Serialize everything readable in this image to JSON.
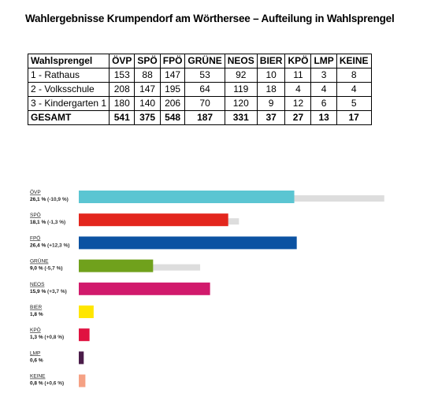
{
  "title": "Wahlergebnisse Krumpendorf am Wörthersee – Aufteilung in Wahlsprengel",
  "table": {
    "headers": [
      "Wahlsprengel",
      "ÖVP",
      "SPÖ",
      "FPÖ",
      "GRÜNE",
      "NEOS",
      "BIER",
      "KPÖ",
      "LMP",
      "KEINE"
    ],
    "rows": [
      [
        "1 - Rathaus",
        "153",
        "88",
        "147",
        "53",
        "92",
        "10",
        "11",
        "3",
        "8"
      ],
      [
        "2 - Volksschule",
        "208",
        "147",
        "195",
        "64",
        "119",
        "18",
        "4",
        "4",
        "4"
      ],
      [
        "3 - Kindergarten 1",
        "180",
        "140",
        "206",
        "70",
        "120",
        "9",
        "12",
        "6",
        "5"
      ]
    ],
    "total": [
      "GESAMT",
      "541",
      "375",
      "548",
      "187",
      "331",
      "37",
      "27",
      "13",
      "17"
    ]
  },
  "chart_data": {
    "type": "bar",
    "orientation": "horizontal",
    "categories": [
      "ÖVP",
      "SPÖ",
      "FPÖ",
      "GRÜNE",
      "NEOS",
      "BIER",
      "KPÖ",
      "LMP",
      "KEINE"
    ],
    "series": [
      {
        "values": [
          26.1,
          18.1,
          26.4,
          9.0,
          15.9,
          1.8,
          1.3,
          0.6,
          0.8
        ]
      },
      {
        "values": [
          37.0,
          19.4,
          14.1,
          14.7,
          12.2,
          0,
          0.5,
          0,
          0.2
        ]
      }
    ],
    "value_labels": [
      "26,1 %",
      "18,1 %",
      "26,4 %",
      "9,0 %",
      "15,9 %",
      "1,8 %",
      "1,3 %",
      "0,6 %",
      "0,8 %"
    ],
    "change_labels": [
      "(-10,9 %)",
      "(-1,3 %)",
      "(+12,3 %)",
      "(-5,7 %)",
      "(+3,7 %)",
      "",
      "(+0,8 %)",
      "",
      "(+0,6 %)"
    ],
    "colors": [
      "#5bc5d2",
      "#e3261d",
      "#0b52a2",
      "#70a11c",
      "#d11a6c",
      "#ffe600",
      "#e01240",
      "#4a1c49",
      "#f5a184"
    ],
    "previous_color": "#dddddd",
    "xlim": [
      0,
      37.5
    ]
  }
}
